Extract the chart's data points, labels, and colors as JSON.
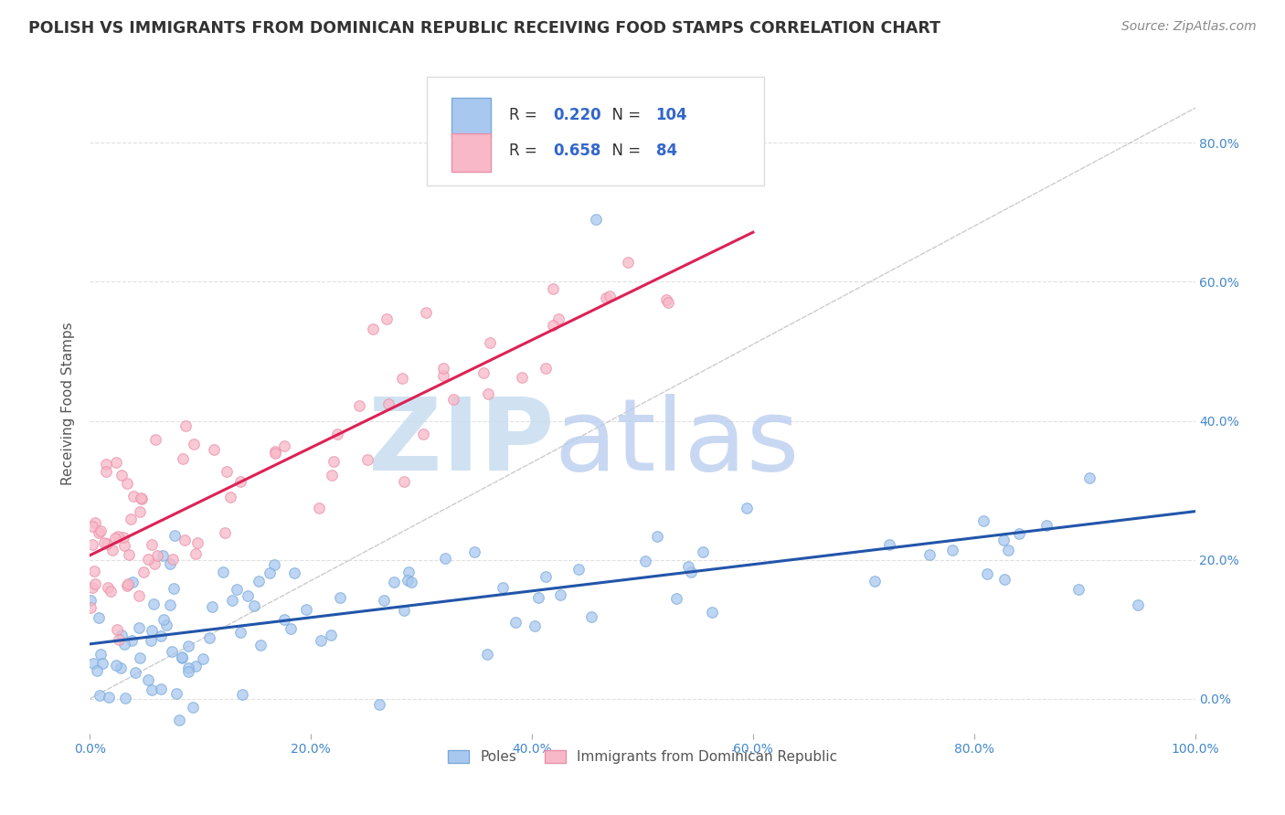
{
  "title": "POLISH VS IMMIGRANTS FROM DOMINICAN REPUBLIC RECEIVING FOOD STAMPS CORRELATION CHART",
  "source": "Source: ZipAtlas.com",
  "ylabel": "Receiving Food Stamps",
  "xlim": [
    0,
    1
  ],
  "ylim": [
    -0.05,
    0.9
  ],
  "ytick_vals": [
    0.0,
    0.2,
    0.4,
    0.6,
    0.8
  ],
  "ytick_labels": [
    "0.0%",
    "20.0%",
    "40.0%",
    "60.0%",
    "80.0%"
  ],
  "xtick_vals": [
    0.0,
    0.2,
    0.4,
    0.6,
    0.8,
    1.0
  ],
  "xtick_labels": [
    "0.0%",
    "20.0%",
    "40.0%",
    "60.0%",
    "80.0%",
    "100.0%"
  ],
  "blue_fill": "#a8c8f0",
  "blue_edge": "#7aaad8",
  "pink_fill": "#f8b8c8",
  "pink_edge": "#e890a8",
  "blue_line_color": "#2255aa",
  "pink_line_color": "#dd2255",
  "diag_line_color": "#cccccc",
  "grid_color": "#e0e0e0",
  "R_blue": 0.22,
  "N_blue": 104,
  "R_pink": 0.658,
  "N_pink": 84,
  "legend_labels": [
    "Poles",
    "Immigrants from Dominican Republic"
  ],
  "watermark_zip": "ZIP",
  "watermark_atlas": "atlas",
  "watermark_color_zip": "#c8ddf0",
  "watermark_color_atlas": "#c8ddf0",
  "title_color": "#333333",
  "title_fontsize": 12.5,
  "source_fontsize": 10,
  "tick_color": "#4488cc",
  "axis_label_color": "#555555",
  "legend_value_color": "#3366cc",
  "legend_label_color": "#333333"
}
